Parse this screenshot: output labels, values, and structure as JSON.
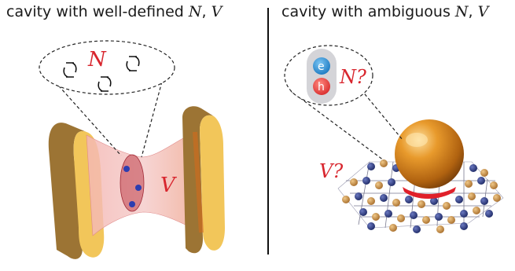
{
  "panels": {
    "left": {
      "title_text": "cavity with well-defined ",
      "title_var_n": "N",
      "title_sep": ", ",
      "title_var_v": "V",
      "label_n": "N",
      "label_v": "V"
    },
    "right": {
      "title_text": "cavity with ambiguous ",
      "title_var_n": "N",
      "title_sep": ", ",
      "title_var_v": "V",
      "label_n": "N?",
      "label_v": "V?",
      "electron": "e",
      "hole": "h"
    }
  },
  "colors": {
    "label_red": "#d8262e",
    "mirror_gold": "#a8823c",
    "mirror_face": "#f2c65a",
    "beam_pink": "#f0a8a8",
    "volume_red": "#c0404a",
    "dot_blue": "#3040b0",
    "electron_blue": "#2a8ed8",
    "hole_red": "#e84040",
    "sphere_orange": "#d8861c",
    "lattice_navy": "#2e3a7a",
    "lattice_tan": "#c89048"
  }
}
